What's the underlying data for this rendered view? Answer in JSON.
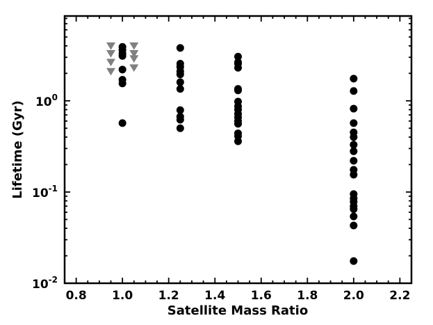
{
  "chart_data": {
    "type": "scatter",
    "xlabel": "Satellite Mass Ratio",
    "ylabel": "Lifetime (Gyr)",
    "xlim": [
      0.75,
      2.25
    ],
    "ylim": [
      0.01,
      8.5
    ],
    "yscale": "log",
    "x_ticks": [
      0.8,
      1.0,
      1.2,
      1.4,
      1.6,
      1.8,
      2.0,
      2.2
    ],
    "x_tick_labels": [
      "0.8",
      "1.0",
      "1.2",
      "1.4",
      "1.6",
      "1.8",
      "2.0",
      "2.2"
    ],
    "y_major_ticks": [
      0.01,
      0.1,
      1.0
    ],
    "y_tick_labels": [
      {
        "base": "10",
        "exp": "-2"
      },
      {
        "base": "10",
        "exp": "-1"
      },
      {
        "base": "10",
        "exp": "0"
      }
    ],
    "grid": false,
    "series": [
      {
        "marker": "circle",
        "color": "#000000",
        "points": [
          [
            1.0,
            3.9
          ],
          [
            1.0,
            3.6
          ],
          [
            1.0,
            3.3
          ],
          [
            1.0,
            3.1
          ],
          [
            1.0,
            2.2
          ],
          [
            1.0,
            1.7
          ],
          [
            1.0,
            1.55
          ],
          [
            1.0,
            0.57
          ],
          [
            1.25,
            3.8
          ],
          [
            1.25,
            2.55
          ],
          [
            1.25,
            2.35
          ],
          [
            1.25,
            2.1
          ],
          [
            1.25,
            1.95
          ],
          [
            1.25,
            1.6
          ],
          [
            1.25,
            1.35
          ],
          [
            1.25,
            0.79
          ],
          [
            1.25,
            0.67
          ],
          [
            1.25,
            0.62
          ],
          [
            1.25,
            0.5
          ],
          [
            1.5,
            3.05
          ],
          [
            1.5,
            2.65
          ],
          [
            1.5,
            2.55
          ],
          [
            1.5,
            2.3
          ],
          [
            1.5,
            1.35
          ],
          [
            1.5,
            1.3
          ],
          [
            1.5,
            0.98
          ],
          [
            1.5,
            0.87
          ],
          [
            1.5,
            0.8
          ],
          [
            1.5,
            0.72
          ],
          [
            1.5,
            0.66
          ],
          [
            1.5,
            0.6
          ],
          [
            1.5,
            0.56
          ],
          [
            1.5,
            0.44
          ],
          [
            1.5,
            0.41
          ],
          [
            1.5,
            0.36
          ],
          [
            2.0,
            1.75
          ],
          [
            2.0,
            1.28
          ],
          [
            2.0,
            0.82
          ],
          [
            2.0,
            0.57
          ],
          [
            2.0,
            0.45
          ],
          [
            2.0,
            0.4
          ],
          [
            2.0,
            0.33
          ],
          [
            2.0,
            0.28
          ],
          [
            2.0,
            0.22
          ],
          [
            2.0,
            0.175
          ],
          [
            2.0,
            0.155
          ],
          [
            2.0,
            0.095
          ],
          [
            2.0,
            0.085
          ],
          [
            2.0,
            0.078
          ],
          [
            2.0,
            0.07
          ],
          [
            2.0,
            0.065
          ],
          [
            2.0,
            0.054
          ],
          [
            2.0,
            0.043
          ],
          [
            2.0,
            0.0175
          ]
        ]
      },
      {
        "marker": "triangle-down",
        "color": "#808080",
        "points": [
          [
            0.95,
            4.0
          ],
          [
            0.95,
            3.3
          ],
          [
            0.95,
            2.65
          ],
          [
            0.95,
            2.1
          ],
          [
            1.05,
            4.0
          ],
          [
            1.05,
            3.3
          ],
          [
            1.05,
            2.9
          ],
          [
            1.05,
            2.3
          ]
        ]
      }
    ]
  }
}
